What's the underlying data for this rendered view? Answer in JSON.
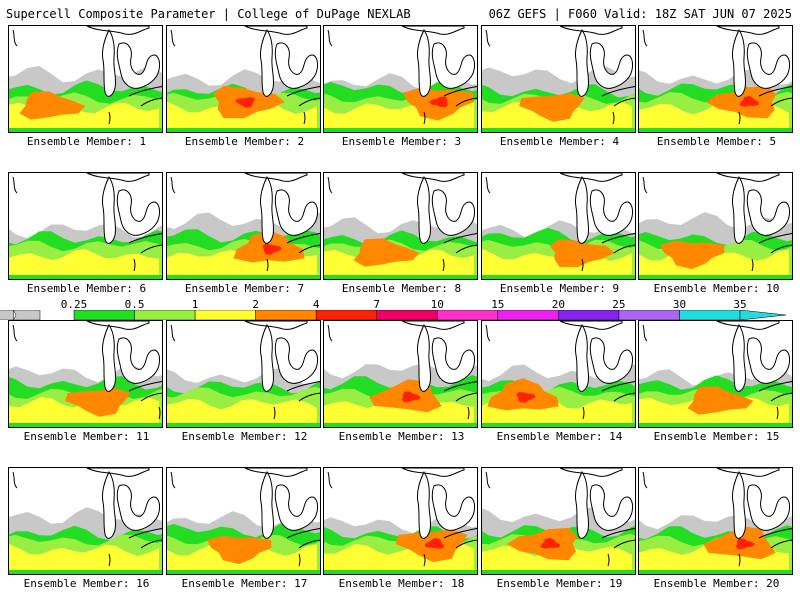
{
  "header": {
    "title_left": "Supercell Composite Parameter | College of DuPage NEXLAB",
    "title_right": "06Z GEFS | F060 Valid: 18Z SAT JUN 07 2025"
  },
  "legend": {
    "ticks": [
      "0.25",
      "0.5",
      "1",
      "2",
      "4",
      "7",
      "10",
      "15",
      "20",
      "25",
      "30",
      "35"
    ],
    "colors": [
      "#c8c8c8",
      "#22dd22",
      "#99ee44",
      "#ffff33",
      "#ff8800",
      "#ff2200",
      "#ee0066",
      "#ff33cc",
      "#ee22ee",
      "#8822ee",
      "#aa66ee",
      "#22dddd"
    ]
  },
  "members": [
    {
      "label": "Ensemble Member: 1",
      "intensity": 2
    },
    {
      "label": "Ensemble Member: 2",
      "intensity": 3
    },
    {
      "label": "Ensemble Member: 3",
      "intensity": 3
    },
    {
      "label": "Ensemble Member: 4",
      "intensity": 2
    },
    {
      "label": "Ensemble Member: 5",
      "intensity": 3
    },
    {
      "label": "Ensemble Member: 6",
      "intensity": 1
    },
    {
      "label": "Ensemble Member: 7",
      "intensity": 3
    },
    {
      "label": "Ensemble Member: 8",
      "intensity": 2
    },
    {
      "label": "Ensemble Member: 9",
      "intensity": 2
    },
    {
      "label": "Ensemble Member: 10",
      "intensity": 2
    },
    {
      "label": "Ensemble Member: 11",
      "intensity": 2
    },
    {
      "label": "Ensemble Member: 12",
      "intensity": 1
    },
    {
      "label": "Ensemble Member: 13",
      "intensity": 3
    },
    {
      "label": "Ensemble Member: 14",
      "intensity": 3
    },
    {
      "label": "Ensemble Member: 15",
      "intensity": 2
    },
    {
      "label": "Ensemble Member: 16",
      "intensity": 1
    },
    {
      "label": "Ensemble Member: 17",
      "intensity": 2
    },
    {
      "label": "Ensemble Member: 18",
      "intensity": 3
    },
    {
      "label": "Ensemble Member: 19",
      "intensity": 3
    },
    {
      "label": "Ensemble Member: 20",
      "intensity": 3
    }
  ]
}
